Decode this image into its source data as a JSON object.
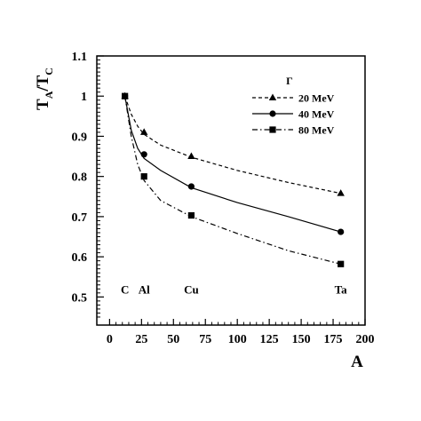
{
  "chart_data": {
    "type": "line",
    "xlabel": "A",
    "ylabel": "T_A/T_C",
    "ylabel_main": "T",
    "ylabel_sub_a": "A",
    "ylabel_slash": "/T",
    "ylabel_sub_c": "C",
    "xlim": [
      -10,
      200
    ],
    "ylim": [
      0.43,
      1.1
    ],
    "x_ticks": [
      0,
      25,
      50,
      75,
      100,
      125,
      150,
      175,
      200
    ],
    "y_ticks": [
      0.5,
      0.6,
      0.7,
      0.8,
      0.9,
      1.0,
      1.1
    ],
    "y_tick_labels": [
      "0.5",
      "0.6",
      "0.7",
      "0.8",
      "0.9",
      "1",
      "1.1"
    ],
    "grid": false,
    "legend_title": "Γ",
    "legend_position": "top-right",
    "element_labels": [
      {
        "label": "C",
        "x": 12
      },
      {
        "label": "Al",
        "x": 27
      },
      {
        "label": "Cu",
        "x": 64
      },
      {
        "label": "Ta",
        "x": 181
      }
    ],
    "element_label_y": 0.508,
    "series": [
      {
        "name": "20 MeV",
        "marker": "triangle",
        "line_style": "dashed",
        "x": [
          12,
          27,
          64,
          181
        ],
        "y": [
          1.0,
          0.91,
          0.85,
          0.758
        ],
        "curve_x": [
          12,
          17,
          22,
          27,
          40,
          64,
          100,
          140,
          181
        ],
        "curve_y": [
          1.0,
          0.955,
          0.925,
          0.905,
          0.878,
          0.848,
          0.815,
          0.785,
          0.758
        ]
      },
      {
        "name": "40 MeV",
        "marker": "circle",
        "line_style": "solid",
        "x": [
          12,
          27,
          64,
          181
        ],
        "y": [
          1.0,
          0.855,
          0.775,
          0.662
        ],
        "curve_x": [
          12,
          17,
          22,
          27,
          40,
          64,
          100,
          140,
          181
        ],
        "curve_y": [
          1.0,
          0.915,
          0.87,
          0.845,
          0.815,
          0.772,
          0.735,
          0.7,
          0.662
        ]
      },
      {
        "name": "80 MeV",
        "marker": "square",
        "line_style": "dash-dot",
        "x": [
          12,
          27,
          64,
          181
        ],
        "y": [
          1.0,
          0.8,
          0.703,
          0.582
        ],
        "curve_x": [
          12,
          17,
          22,
          27,
          40,
          64,
          100,
          140,
          181
        ],
        "curve_y": [
          1.0,
          0.9,
          0.83,
          0.79,
          0.74,
          0.7,
          0.658,
          0.615,
          0.582
        ]
      }
    ]
  }
}
